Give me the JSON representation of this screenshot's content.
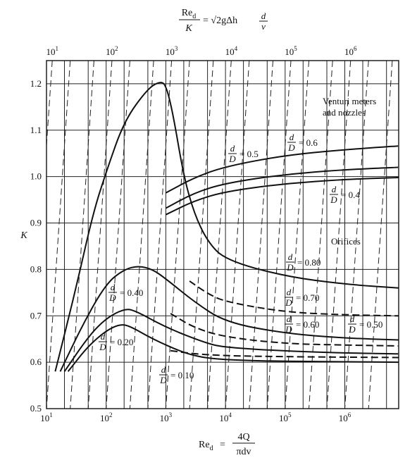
{
  "chart_data": {
    "type": "line",
    "xscale": "log",
    "xlim": [
      10,
      8000000
    ],
    "ylim": [
      0.5,
      1.25
    ],
    "ylabel": "K",
    "yticks": [
      0.5,
      0.6,
      0.7,
      0.8,
      0.9,
      1.0,
      1.1,
      1.2
    ],
    "ytick_labels": [
      "0.5",
      "0.6",
      "0.7",
      "0.8",
      "0.9",
      "1.0",
      "1.1",
      "1.2"
    ],
    "xticks": [
      {
        "base": "10",
        "exp": "1"
      },
      {
        "base": "10",
        "exp": "2"
      },
      {
        "base": "10",
        "exp": "3"
      },
      {
        "base": "10",
        "exp": "4"
      },
      {
        "base": "10",
        "exp": "5"
      },
      {
        "base": "10",
        "exp": "6"
      }
    ],
    "xlabel": {
      "lhs": "Re",
      "sub": "d",
      "eq": " = ",
      "num": "4Q",
      "den": "πdv"
    },
    "top_label": {
      "num_main": "Re",
      "num_sub": "d",
      "den": "K",
      "eq": " = √2gΔh ",
      "frac_num": "d",
      "frac_den": "v"
    },
    "top_ticks": [
      {
        "base": "10",
        "exp": "1"
      },
      {
        "base": "10",
        "exp": "2"
      },
      {
        "base": "10",
        "exp": "3"
      },
      {
        "base": "10",
        "exp": "4"
      },
      {
        "base": "10",
        "exp": "5"
      },
      {
        "base": "10",
        "exp": "6"
      }
    ],
    "groups": {
      "venturi": "Venturi meters\nand nozzles",
      "orifices": "Orifices"
    },
    "ratio_labels": {
      "frac_num": "d",
      "frac_den": "D",
      "v05": "= 0.5",
      "v06": "= 0.6",
      "v04": "= 0.4",
      "o080": "= 0.80",
      "o070": "= 0.70",
      "o060": "= 0.60",
      "o050": "= 0.50",
      "o040": "= 0.40",
      "o020": "= 0.20",
      "o010": "= 0.10"
    },
    "series": [
      {
        "group": "venturi",
        "ratio": 0.6,
        "style": "solid",
        "points": [
          [
            1000,
            0.965
          ],
          [
            3000,
            0.998
          ],
          [
            10000,
            1.022
          ],
          [
            100000,
            1.046
          ],
          [
            1000000,
            1.058
          ],
          [
            8000000,
            1.066
          ]
        ]
      },
      {
        "group": "venturi",
        "ratio": 0.5,
        "style": "solid",
        "points": [
          [
            1000,
            0.932
          ],
          [
            3000,
            0.965
          ],
          [
            10000,
            0.986
          ],
          [
            100000,
            1.005
          ],
          [
            1000000,
            1.015
          ],
          [
            8000000,
            1.02
          ]
        ]
      },
      {
        "group": "venturi",
        "ratio": 0.4,
        "style": "solid",
        "points": [
          [
            1000,
            0.918
          ],
          [
            3000,
            0.948
          ],
          [
            10000,
            0.968
          ],
          [
            100000,
            0.985
          ],
          [
            1000000,
            0.994
          ],
          [
            8000000,
            0.998
          ]
        ]
      },
      {
        "group": "orifices",
        "ratio": 0.8,
        "style": "solid",
        "points": [
          [
            14,
            0.58
          ],
          [
            30,
            0.75
          ],
          [
            60,
            0.92
          ],
          [
            100,
            1.01
          ],
          [
            200,
            1.12
          ],
          [
            500,
            1.19
          ],
          [
            800,
            1.205
          ],
          [
            1000,
            1.198
          ],
          [
            1300,
            1.14
          ],
          [
            2000,
            1.0
          ],
          [
            3000,
            0.92
          ],
          [
            5000,
            0.86
          ],
          [
            10000,
            0.82
          ],
          [
            100000,
            0.785
          ],
          [
            1000000,
            0.768
          ],
          [
            8000000,
            0.76
          ]
        ]
      },
      {
        "group": "orifices",
        "ratio": 0.7,
        "style": "dashed",
        "points": [
          [
            2500,
            0.775
          ],
          [
            5000,
            0.748
          ],
          [
            10000,
            0.73
          ],
          [
            100000,
            0.708
          ],
          [
            1000000,
            0.702
          ],
          [
            8000000,
            0.7
          ]
        ]
      },
      {
        "group": "orifices",
        "ratio": 0.6,
        "style": "dashed",
        "points": [
          [
            1200,
            0.705
          ],
          [
            3000,
            0.674
          ],
          [
            10000,
            0.654
          ],
          [
            100000,
            0.64
          ],
          [
            1000000,
            0.637
          ],
          [
            8000000,
            0.635
          ]
        ]
      },
      {
        "group": "orifices",
        "ratio": 0.5,
        "style": "dashed",
        "points": [
          [
            1200,
            0.625
          ],
          [
            3000,
            0.618
          ],
          [
            10000,
            0.614
          ],
          [
            100000,
            0.612
          ],
          [
            1000000,
            0.611
          ],
          [
            8000000,
            0.61
          ]
        ]
      },
      {
        "group": "orifices",
        "ratio": 0.4,
        "style": "solid",
        "points": [
          [
            17,
            0.58
          ],
          [
            40,
            0.68
          ],
          [
            100,
            0.77
          ],
          [
            200,
            0.8
          ],
          [
            350,
            0.808
          ],
          [
            600,
            0.8
          ],
          [
            1000,
            0.78
          ],
          [
            3000,
            0.73
          ],
          [
            10000,
            0.686
          ],
          [
            100000,
            0.662
          ],
          [
            1000000,
            0.652
          ],
          [
            8000000,
            0.648
          ]
        ]
      },
      {
        "group": "orifices",
        "ratio": 0.2,
        "style": "solid",
        "points": [
          [
            20,
            0.58
          ],
          [
            50,
            0.655
          ],
          [
            100,
            0.695
          ],
          [
            200,
            0.715
          ],
          [
            300,
            0.712
          ],
          [
            1000,
            0.675
          ],
          [
            5000,
            0.64
          ],
          [
            10000,
            0.632
          ],
          [
            100000,
            0.624
          ],
          [
            1000000,
            0.62
          ],
          [
            8000000,
            0.618
          ]
        ]
      },
      {
        "group": "orifices",
        "ratio": 0.1,
        "style": "solid",
        "points": [
          [
            23,
            0.58
          ],
          [
            50,
            0.635
          ],
          [
            100,
            0.668
          ],
          [
            170,
            0.682
          ],
          [
            250,
            0.678
          ],
          [
            600,
            0.65
          ],
          [
            2000,
            0.62
          ],
          [
            5000,
            0.608
          ],
          [
            20000,
            0.604
          ],
          [
            100000,
            0.602
          ],
          [
            1000000,
            0.601
          ],
          [
            8000000,
            0.6
          ]
        ]
      }
    ],
    "grid": true
  }
}
